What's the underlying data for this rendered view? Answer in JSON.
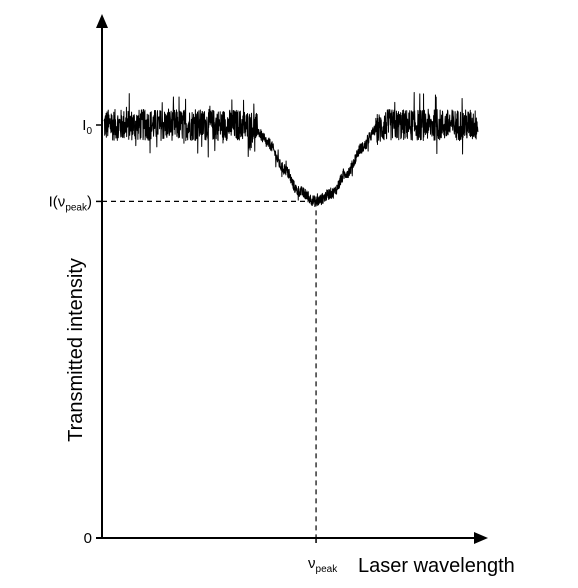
{
  "chart_data": {
    "type": "line",
    "title": "",
    "xlabel": "Laser wavelength",
    "ylabel": "Transmitted intensity",
    "x_range": [
      0,
      10
    ],
    "ylim": [
      0,
      10
    ],
    "grid": false,
    "legend": "none",
    "y_ticks": [
      {
        "label_main": "0",
        "label_sub": "",
        "value": 0
      },
      {
        "label_main": "I(ν",
        "label_sub": "peak",
        "label_tail": ")",
        "value": 8.15
      },
      {
        "label_main": "I",
        "label_sub": "0",
        "value": 10
      }
    ],
    "x_ticks": [
      {
        "label_main": "ν",
        "label_sub": "peak",
        "value": 5.67
      }
    ],
    "baseline_intensity": 10,
    "peak_intensity": 8.15,
    "peak_position": 5.67,
    "dip_start": 3.8,
    "dip_end": 7.6,
    "noise_amplitude": 0.38,
    "series": [
      {
        "x": [
          0,
          1,
          2,
          3,
          3.6,
          4.0,
          4.4,
          4.8,
          5.2,
          5.67,
          6.1,
          6.5,
          6.9,
          7.3,
          7.6,
          8.5,
          9.5,
          10
        ],
        "values": [
          10,
          10,
          10,
          10,
          10,
          9.95,
          9.55,
          8.95,
          8.4,
          8.15,
          8.35,
          8.85,
          9.45,
          9.9,
          10,
          10,
          10,
          10
        ]
      }
    ],
    "line_color": "#000000",
    "axis_color": "#000000",
    "dashed_color": "#000000"
  }
}
